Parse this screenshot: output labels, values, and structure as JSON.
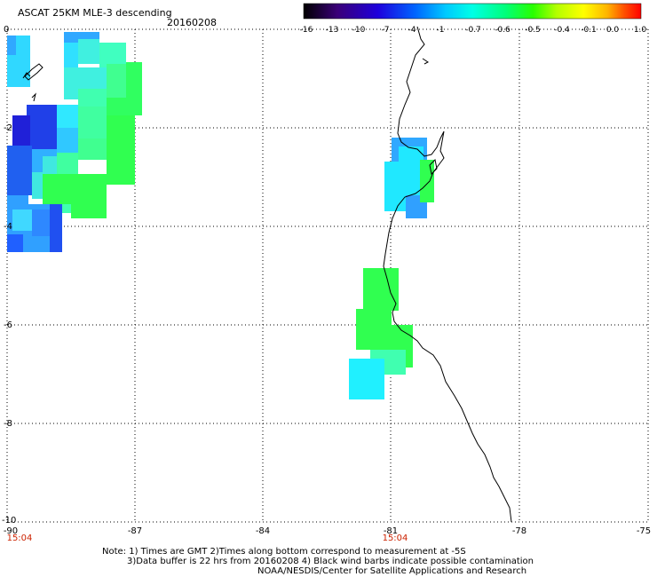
{
  "header": {
    "title": "ASCAT 25KM MLE-3 descending",
    "date": "20160208"
  },
  "colorbar": {
    "labels": [
      "-16",
      "-13",
      "-10",
      "-7",
      "-4",
      "-1",
      "-0.7",
      "-0.6",
      "-0.5",
      "-0.4",
      "-0.1",
      "0.0",
      "1.0"
    ],
    "colors": [
      "#000000",
      "#3a0078",
      "#1e00dc",
      "#0064ff",
      "#00d2ff",
      "#00ffe6",
      "#00ff78",
      "#28ff00",
      "#b4ff00",
      "#ffff00",
      "#ffb400",
      "#ff5000",
      "#ff0000"
    ]
  },
  "map": {
    "lon_labels": [
      "-90",
      "-87",
      "-84",
      "-81",
      "-78",
      "-75"
    ],
    "lat_labels": [
      "0",
      "-2",
      "-4",
      "-6",
      "-8",
      "-10"
    ],
    "time_labels": [
      "15:04",
      "15:04"
    ]
  },
  "colors": {
    "blue": "#1010e0",
    "mid_blue": "#2060ff",
    "light_blue": "#30a0ff",
    "cyan": "#00f0ff",
    "aqua": "#40ffd0",
    "green": "#20ff40",
    "time_red": "#cc2200"
  },
  "footer": {
    "note_line1": "Note: 1) Times are GMT 2)Times along bottom correspond to measurement at -5S",
    "note_line2": "3)Data buffer is 22 hrs from 20160208 4) Black wind barbs indicate possible contamination",
    "credit": "NOAA/NESDIS/Center for Satellite Applications and Research"
  }
}
